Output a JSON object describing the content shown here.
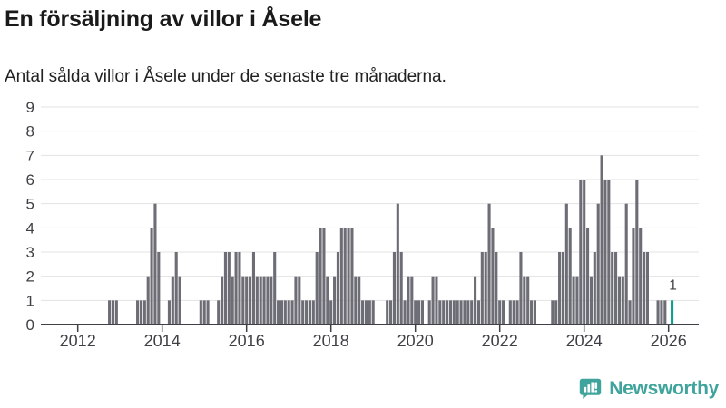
{
  "header": {
    "title": "En försäljning av villor i Åsele",
    "subtitle": "Antal sålda villor i Åsele under de senaste tre månaderna."
  },
  "footer": {
    "brand_name": "Newsworthy"
  },
  "colors": {
    "bar": "#6d6d76",
    "highlight": "#0f9e94",
    "grid": "#e3e3e3",
    "axis": "#3f3f46",
    "brand_teal": "#3ea49c"
  },
  "chart_data": {
    "type": "bar",
    "title": "En försäljning av villor i Åsele",
    "subtitle": "Antal sålda villor i Åsele under de senaste tre månaderna.",
    "series_name": "Antal sålda villor",
    "start": "2011-03",
    "end": "2026-02",
    "ylim": [
      0,
      9
    ],
    "yticks": [
      0,
      1,
      2,
      3,
      4,
      5,
      6,
      7,
      8,
      9
    ],
    "xticks": [
      "2012",
      "2014",
      "2016",
      "2018",
      "2020",
      "2022",
      "2024",
      "2026"
    ],
    "grid": true,
    "legend": "none",
    "values_by_year": {
      "2011": [
        0,
        0,
        0,
        0,
        0,
        0,
        0,
        0,
        0,
        0
      ],
      "2012": [
        0,
        0,
        0,
        0,
        0,
        0,
        0,
        0,
        0,
        1,
        1,
        1
      ],
      "2013": [
        0,
        0,
        0,
        0,
        0,
        1,
        1,
        1,
        2,
        4,
        5,
        3
      ],
      "2014": [
        0,
        0,
        1,
        2,
        3,
        2,
        0,
        0,
        0,
        0,
        0,
        1
      ],
      "2015": [
        1,
        1,
        0,
        0,
        1,
        2,
        3,
        3,
        2,
        3,
        3,
        2
      ],
      "2016": [
        2,
        2,
        3,
        2,
        2,
        2,
        2,
        2,
        3,
        1,
        1,
        1
      ],
      "2017": [
        1,
        1,
        2,
        2,
        1,
        1,
        1,
        1,
        3,
        4,
        4,
        2
      ],
      "2018": [
        1,
        2,
        3,
        4,
        4,
        4,
        4,
        2,
        2,
        1,
        1,
        1
      ],
      "2019": [
        1,
        0,
        0,
        0,
        1,
        1,
        3,
        5,
        3,
        1,
        2,
        2
      ],
      "2020": [
        1,
        1,
        1,
        0,
        1,
        2,
        2,
        1,
        1,
        1,
        1,
        1
      ],
      "2021": [
        1,
        1,
        1,
        1,
        1,
        2,
        1,
        3,
        3,
        5,
        4,
        3
      ],
      "2022": [
        1,
        1,
        0,
        1,
        1,
        1,
        3,
        2,
        2,
        1,
        1,
        0
      ],
      "2023": [
        0,
        0,
        0,
        1,
        1,
        3,
        3,
        5,
        4,
        2,
        2,
        6
      ],
      "2024": [
        6,
        4,
        2,
        3,
        5,
        7,
        6,
        6,
        3,
        3,
        2,
        2
      ],
      "2025": [
        5,
        1,
        4,
        6,
        4,
        3,
        3,
        0,
        0,
        1,
        1,
        1
      ],
      "2026": [
        0,
        1
      ]
    },
    "annotation": {
      "position": "last",
      "label": "1",
      "value": 1
    }
  }
}
